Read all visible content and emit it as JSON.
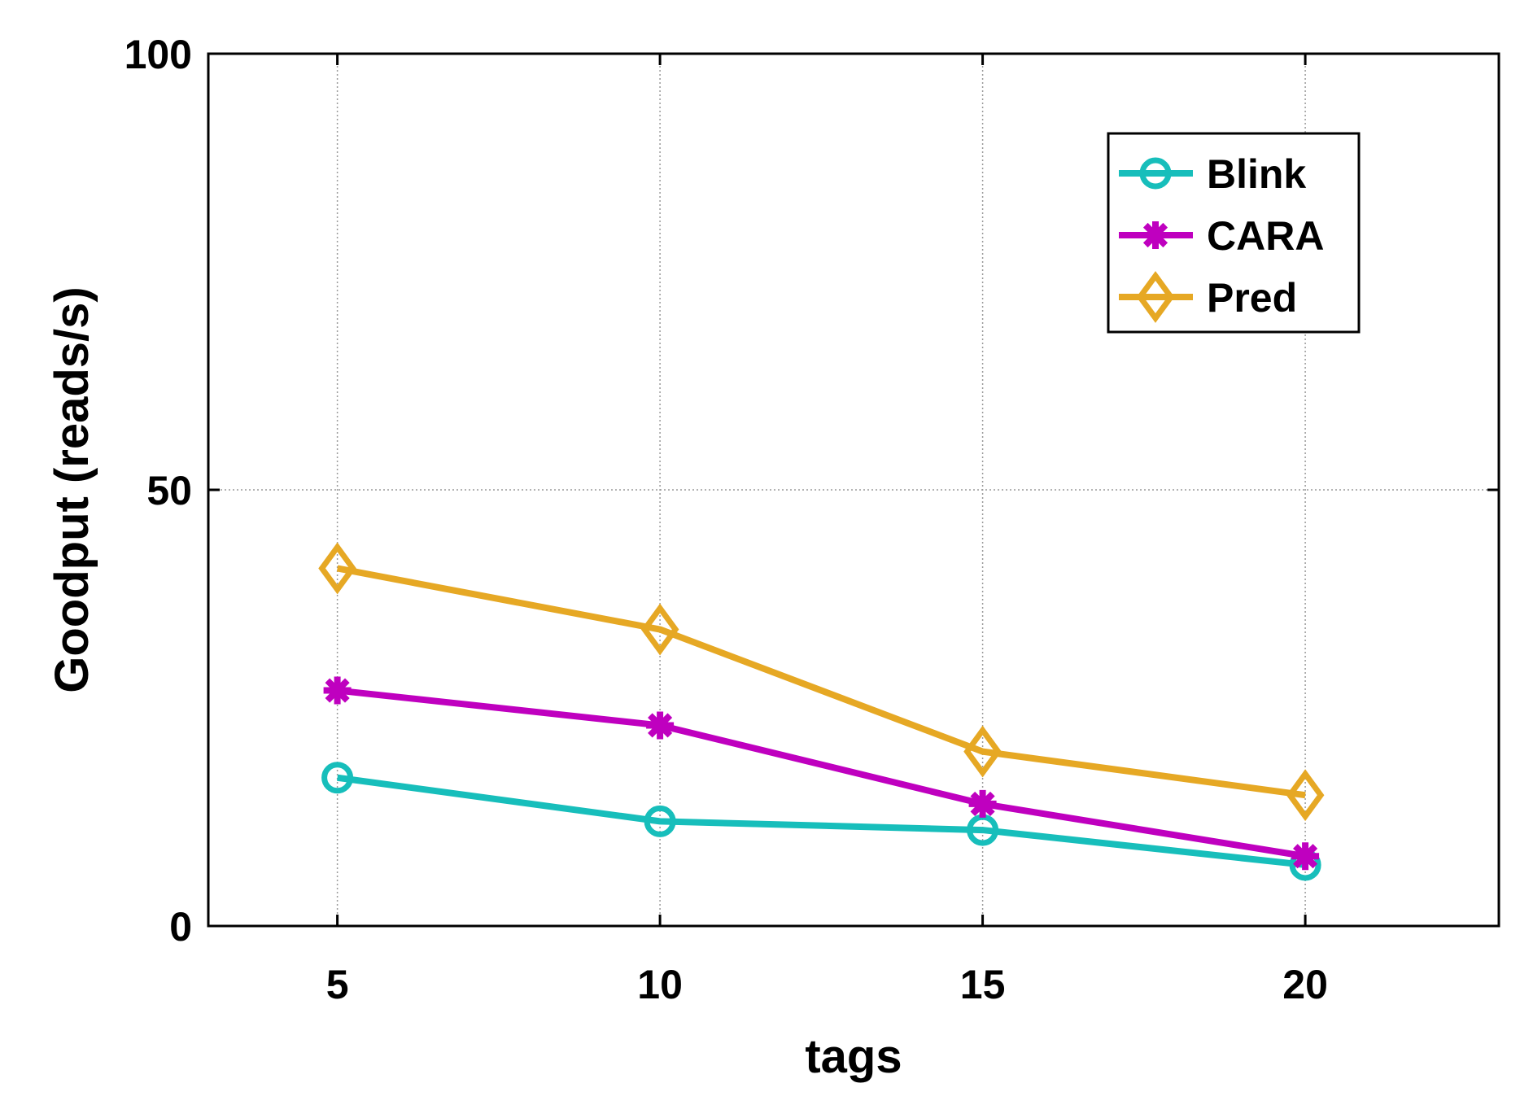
{
  "chart_data": {
    "type": "line",
    "title": "",
    "xlabel": "tags",
    "ylabel": "Goodput (reads/s)",
    "x": [
      5,
      10,
      15,
      20
    ],
    "xlim": [
      3,
      23
    ],
    "ylim": [
      0,
      100
    ],
    "xticks": [
      5,
      10,
      15,
      20
    ],
    "yticks": [
      0,
      50,
      100
    ],
    "grid": true,
    "legend_position": "top-right",
    "series": [
      {
        "name": "Blink",
        "color": "#17BEBB",
        "marker": "circle",
        "values": [
          17,
          12,
          11,
          7
        ]
      },
      {
        "name": "CARA",
        "color": "#BF00BF",
        "marker": "asterisk",
        "values": [
          27,
          23,
          14,
          8
        ]
      },
      {
        "name": "Pred",
        "color": "#E6A824",
        "marker": "diamond",
        "values": [
          41,
          34,
          20,
          15
        ]
      }
    ]
  }
}
